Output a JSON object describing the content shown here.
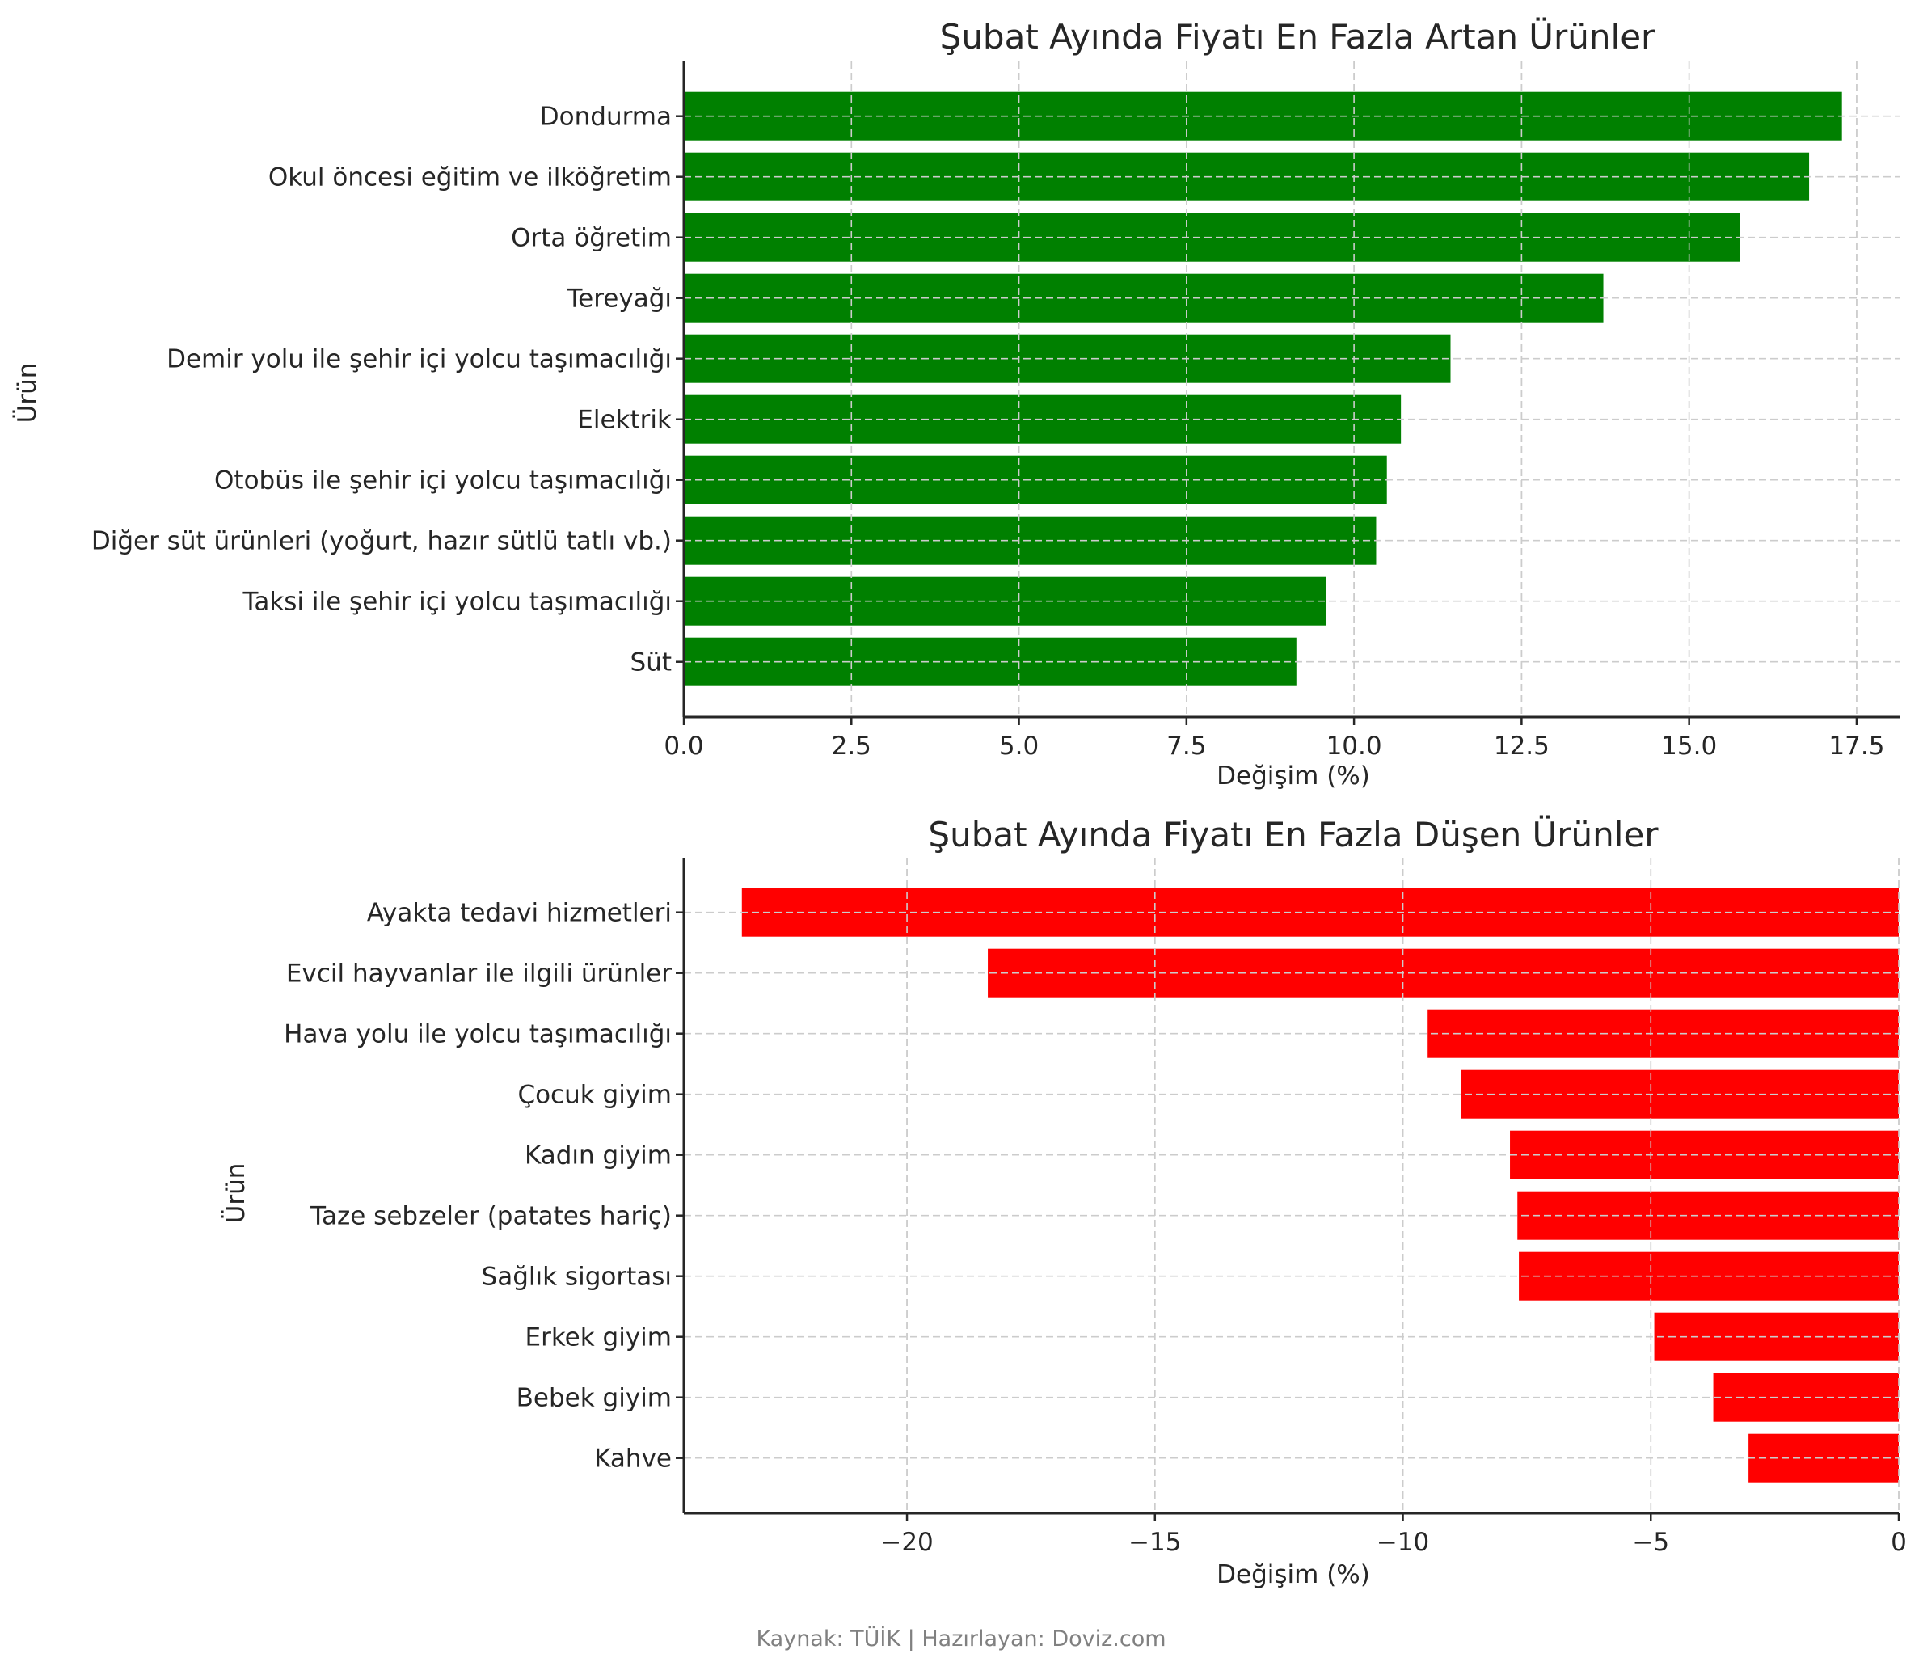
{
  "chart_data": [
    {
      "type": "bar",
      "orientation": "horizontal",
      "title": "Şubat Ayında Fiyatı En Fazla Artan Ürünler",
      "xlabel": "Değişim (%)",
      "ylabel": "Ürün",
      "color": "#008000",
      "xlim": [
        0,
        18.14
      ],
      "xticks": [
        0.0,
        2.5,
        5.0,
        7.5,
        10.0,
        12.5,
        15.0,
        17.5
      ],
      "xtick_labels": [
        "0.0",
        "2.5",
        "5.0",
        "7.5",
        "10.0",
        "12.5",
        "15.0",
        "17.5"
      ],
      "grid": true,
      "categories": [
        "Dondurma",
        "Okul öncesi eğitim ve ilköğretim",
        "Orta öğretim",
        "Tereyağı",
        "Demir yolu ile şehir içi yolcu taşımacılığı",
        "Elektrik",
        "Otobüs ile şehir içi yolcu taşımacılığı",
        "Diğer süt ürünleri (yoğurt, hazır sütlü tatlı vb.)",
        "Taksi ile şehir içi yolcu taşımacılığı",
        "Süt"
      ],
      "values": [
        17.28,
        16.79,
        15.76,
        13.72,
        11.44,
        10.7,
        10.49,
        10.33,
        9.58,
        9.14
      ]
    },
    {
      "type": "bar",
      "orientation": "horizontal",
      "title": "Şubat Ayında Fiyatı En Fazla Düşen Ürünler",
      "xlabel": "Değişim (%)",
      "ylabel": "Ürün",
      "color": "#ff0000",
      "xlim": [
        -24.5,
        0
      ],
      "xticks": [
        -20,
        -15,
        -10,
        -5,
        0
      ],
      "xtick_labels": [
        "−20",
        "−15",
        "−10",
        "−5",
        "0"
      ],
      "grid": true,
      "categories": [
        "Ayakta tedavi hizmetleri",
        "Evcil hayvanlar ile ilgili ürünler",
        "Hava yolu ile yolcu taşımacılığı",
        "Çocuk giyim",
        "Kadın giyim",
        "Taze sebzeler (patates hariç)",
        "Sağlık sigortası",
        "Erkek giyim",
        "Bebek giyim",
        "Kahve"
      ],
      "values": [
        -23.33,
        -18.37,
        -9.5,
        -8.83,
        -7.84,
        -7.69,
        -7.66,
        -4.93,
        -3.74,
        -3.03
      ]
    }
  ],
  "footer": {
    "source_text": "Kaynak: TÜİK | Hazırlayan: Doviz.com"
  }
}
